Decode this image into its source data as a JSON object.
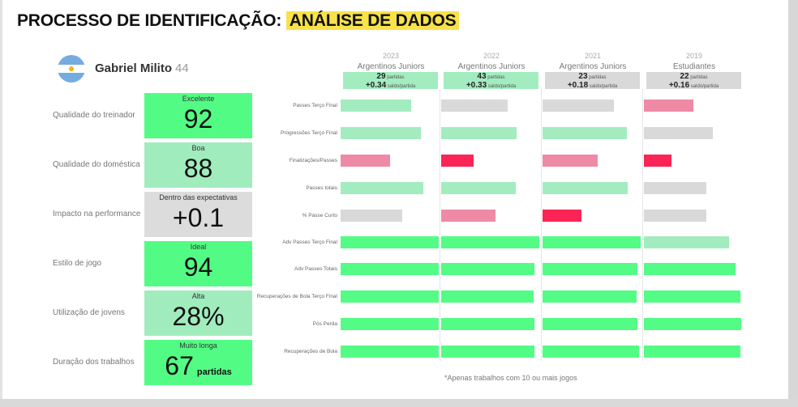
{
  "header": {
    "title_prefix": "PROCESSO DE IDENTIFICAÇÃO:",
    "title_highlight": "ANÁLISE DE DADOS"
  },
  "coach": {
    "name": "Gabriel Milito",
    "age": "44",
    "flag_icon": "argentina-flag-icon"
  },
  "metrics": [
    {
      "label": "Qualidade do treinador",
      "rating": "Excelente",
      "value": "92",
      "suffix": "",
      "color": "#52fc84"
    },
    {
      "label": "Qualidade do doméstica",
      "rating": "Boa",
      "value": "88",
      "suffix": "",
      "color": "#a0ecbc"
    },
    {
      "label": "Impacto na performance",
      "rating": "Dentro das expectativas",
      "value": "+0.1",
      "suffix": "",
      "color": "#dcdcdc"
    },
    {
      "label": "Estilo de jogo",
      "rating": "Ideal",
      "value": "94",
      "suffix": "",
      "color": "#52fc84"
    },
    {
      "label": "Utilização de jovens",
      "rating": "Alta",
      "value": "28%",
      "suffix": "",
      "color": "#a0ecbc"
    },
    {
      "label": "Duração dos trabalhos",
      "rating": "Muito longa",
      "value": "67",
      "suffix": "partidas",
      "color": "#52fc84"
    }
  ],
  "chart_data": {
    "type": "bar",
    "categories": [
      "Passes Terço Final",
      "Progressões Terço Final",
      "Finalizações/Passes",
      "Passes totais",
      "% Passe Curto",
      "Adv Passes Terço Final",
      "Adv Passes Totais",
      "Recuperações de Bola Terço Final",
      "Pós Perda",
      "Recuperações de Bola"
    ],
    "xlim": [
      0,
      100
    ],
    "colors": {
      "strong_green": "#53fc85",
      "light_green": "#a3ecc0",
      "grey": "#d9d9d9",
      "pink": "#ee8aa6",
      "red": "#fb2456"
    },
    "series": [
      {
        "year": "2023",
        "team": "Argentinos Juniors",
        "matches": "29",
        "matches_label": "partidas",
        "saldo": "+0.34",
        "saldo_label": "saldo/partida",
        "box_color": "#a3ecc0",
        "values": [
          72,
          82,
          50,
          84,
          63,
          100,
          100,
          100,
          100,
          100
        ],
        "colors": [
          "light_green",
          "light_green",
          "pink",
          "light_green",
          "grey",
          "strong_green",
          "strong_green",
          "strong_green",
          "strong_green",
          "strong_green"
        ]
      },
      {
        "year": "2022",
        "team": "Argentinos Juniors",
        "matches": "43",
        "matches_label": "partidas",
        "saldo": "+0.33",
        "saldo_label": "saldo/partida",
        "box_color": "#a3ecc0",
        "values": [
          68,
          77,
          33,
          76,
          55,
          100,
          95,
          94,
          95,
          95
        ],
        "colors": [
          "grey",
          "light_green",
          "red",
          "light_green",
          "pink",
          "strong_green",
          "strong_green",
          "strong_green",
          "strong_green",
          "strong_green"
        ]
      },
      {
        "year": "2021",
        "team": "Argentinos Juniors",
        "matches": "23",
        "matches_label": "partidas",
        "saldo": "+0.18",
        "saldo_label": "saldo/partida",
        "box_color": "#d9d9d9",
        "values": [
          73,
          86,
          56,
          87,
          40,
          100,
          97,
          96,
          97,
          98
        ],
        "colors": [
          "grey",
          "light_green",
          "pink",
          "light_green",
          "red",
          "strong_green",
          "strong_green",
          "strong_green",
          "strong_green",
          "strong_green"
        ]
      },
      {
        "year": "2019",
        "team": "Estudiantes",
        "matches": "22",
        "matches_label": "partidas",
        "saldo": "+0.16",
        "saldo_label": "saldo/partida",
        "box_color": "#d9d9d9",
        "values": [
          50,
          70,
          28,
          64,
          64,
          87,
          93,
          98,
          99,
          98
        ],
        "colors": [
          "pink",
          "grey",
          "red",
          "grey",
          "grey",
          "light_green",
          "strong_green",
          "strong_green",
          "strong_green",
          "strong_green"
        ]
      }
    ]
  },
  "footnote": "*Apenas trabalhos com 10 ou mais jogos"
}
